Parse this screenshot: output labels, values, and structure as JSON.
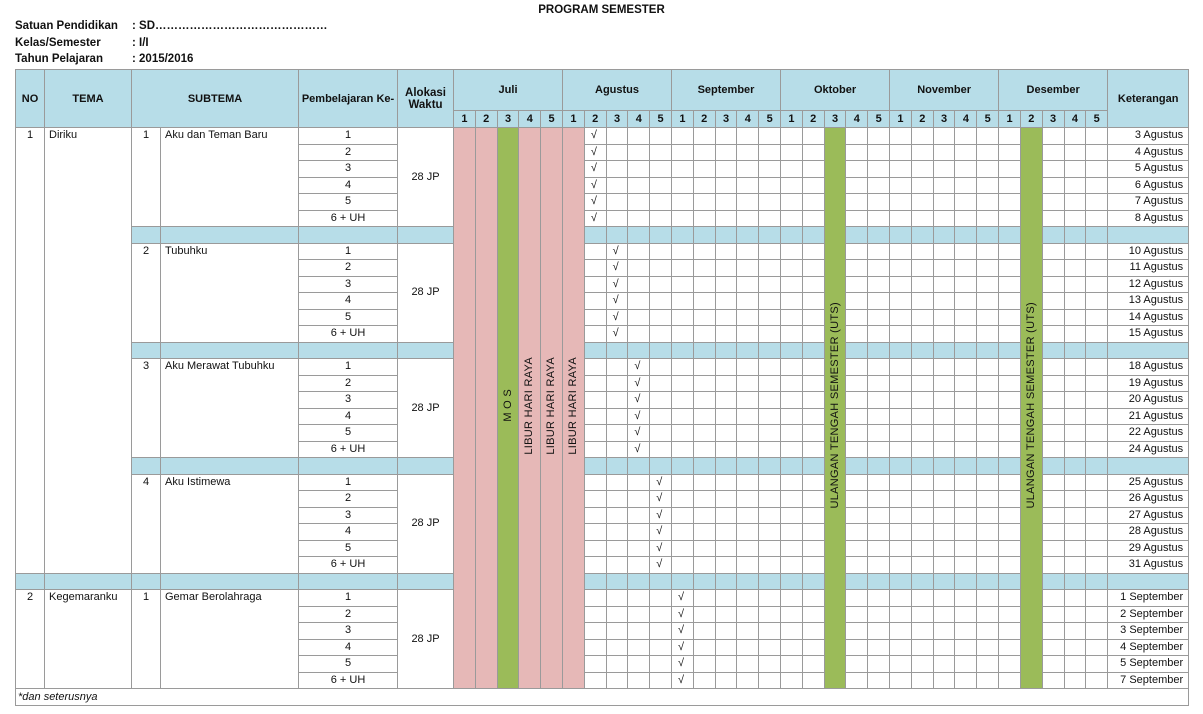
{
  "title": "PROGRAM SEMESTER",
  "info": [
    {
      "label": "Satuan Pendidikan",
      "value": ": SD………………………………………"
    },
    {
      "label": "Kelas/Semester",
      "value": ": I/I"
    },
    {
      "label": "Tahun Pelajaran",
      "value": ": 2015/2016"
    }
  ],
  "headers": {
    "no": "NO",
    "tema": "TEMA",
    "subtema": "SUBTEMA",
    "pembelajaran": "Pembelajaran Ke-",
    "alokasi": "Alokasi Waktu",
    "keterangan": "Keterangan"
  },
  "months": [
    "Juli",
    "Agustus",
    "September",
    "Oktober",
    "November",
    "Desember"
  ],
  "weeks": [
    "1",
    "2",
    "3",
    "4",
    "5"
  ],
  "check_mark": "√",
  "colors": {
    "header": "#b7dde8",
    "holiday": "#e6b8b7",
    "event": "#9bbb59",
    "border": "#9a9a9a"
  },
  "special_columns": [
    {
      "month": "Juli",
      "week": 1,
      "color": "#e6b8b7",
      "label": ""
    },
    {
      "month": "Juli",
      "week": 2,
      "color": "#e6b8b7",
      "label": ""
    },
    {
      "month": "Juli",
      "week": 3,
      "color": "#9bbb59",
      "label": "M O S"
    },
    {
      "month": "Juli",
      "week": 4,
      "color": "#e6b8b7",
      "label": "LIBUR HARI RAYA"
    },
    {
      "month": "Juli",
      "week": 5,
      "color": "#e6b8b7",
      "label": "LIBUR HARI RAYA"
    },
    {
      "month": "Agustus",
      "week": 1,
      "color": "#e6b8b7",
      "label": "LIBUR HARI RAYA"
    },
    {
      "month": "Oktober",
      "week": 3,
      "color": "#9bbb59",
      "label": "ULANGAN TENGAH SEMESTER (UTS)"
    },
    {
      "month": "Desember",
      "week": 2,
      "color": "#9bbb59",
      "label": "ULANGAN TENGAH SEMESTER (UTS)"
    }
  ],
  "temas": [
    {
      "no": "1",
      "name": "Diriku",
      "subtemas": [
        {
          "no": "1",
          "name": "Aku dan Teman Baru",
          "alokasi": "28 JP",
          "month": "Agustus",
          "week": 2,
          "lessons": [
            "1",
            "2",
            "3",
            "4",
            "5",
            "6 + UH"
          ],
          "keterangan": [
            "3 Agustus",
            "4 Agustus",
            "5 Agustus",
            "6 Agustus",
            "7 Agustus",
            "8 Agustus"
          ]
        },
        {
          "no": "2",
          "name": "Tubuhku",
          "alokasi": "28 JP",
          "month": "Agustus",
          "week": 3,
          "lessons": [
            "1",
            "2",
            "3",
            "4",
            "5",
            "6 + UH"
          ],
          "keterangan": [
            "10 Agustus",
            "11 Agustus",
            "12 Agustus",
            "13 Agustus",
            "14 Agustus",
            "15 Agustus"
          ]
        },
        {
          "no": "3",
          "name": "Aku Merawat Tubuhku",
          "alokasi": "28 JP",
          "month": "Agustus",
          "week": 4,
          "lessons": [
            "1",
            "2",
            "3",
            "4",
            "5",
            "6 + UH"
          ],
          "keterangan": [
            "18 Agustus",
            "19 Agustus",
            "20 Agustus",
            "21 Agustus",
            "22 Agustus",
            "24 Agustus"
          ]
        },
        {
          "no": "4",
          "name": "Aku Istimewa",
          "alokasi": "28 JP",
          "month": "Agustus",
          "week": 5,
          "lessons": [
            "1",
            "2",
            "3",
            "4",
            "5",
            "6 + UH"
          ],
          "keterangan": [
            "25 Agustus",
            "26 Agustus",
            "27 Agustus",
            "28 Agustus",
            "29 Agustus",
            "31 Agustus"
          ]
        }
      ]
    },
    {
      "no": "2",
      "name": "Kegemaranku",
      "subtemas": [
        {
          "no": "1",
          "name": "Gemar Berolahraga",
          "alokasi": "28 JP",
          "month": "September",
          "week": 1,
          "lessons": [
            "1",
            "2",
            "3",
            "4",
            "5",
            "6 + UH"
          ],
          "keterangan": [
            "1 September",
            "2 September",
            "3 September",
            "4 September",
            "5 September",
            "7 September"
          ]
        }
      ]
    }
  ],
  "footer_note": "*dan seterusnya"
}
